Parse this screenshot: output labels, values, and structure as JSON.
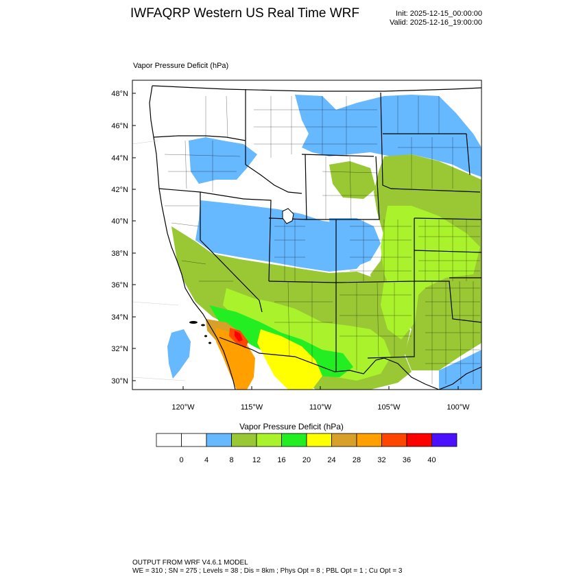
{
  "header": {
    "title": "IWFAQRP Western US Real Time WRF",
    "init": "Init: 2025-12-15_00:00:00",
    "valid": "Valid: 2025-12-16_19:00:00"
  },
  "map": {
    "field_label": "Vapor Pressure Deficit   (hPa)",
    "lat_labels": [
      "48°N",
      "46°N",
      "44°N",
      "42°N",
      "40°N",
      "38°N",
      "36°N",
      "34°N",
      "32°N",
      "30°N"
    ],
    "lon_labels": [
      "120°W",
      "115°W",
      "110°W",
      "105°W",
      "100°W"
    ],
    "colors": {
      "lt4": "#ffffff",
      "4-8": "#66b8ff",
      "8-12": "#99c834",
      "12-16": "#aaf22c",
      "16-20": "#22ee22",
      "20-24": "#ffff00",
      "24-28": "#d8a028",
      "28-32": "#ffa000",
      "32-36": "#ff4600",
      "36-40": "#ff0000",
      "gt40": "#4b11ff"
    }
  },
  "colorbar": {
    "title": "Vapor Pressure Deficit  (hPa)",
    "levels": [
      "0",
      "4",
      "8",
      "12",
      "16",
      "20",
      "24",
      "28",
      "32",
      "36",
      "40"
    ],
    "box_colors": [
      "#ffffff",
      "#ffffff",
      "#66b8ff",
      "#99c834",
      "#aaf22c",
      "#22ee22",
      "#ffff00",
      "#d8a028",
      "#ffa000",
      "#ff4600",
      "#ff0000",
      "#4b11ff"
    ]
  },
  "footer": {
    "line1": "OUTPUT FROM WRF V4.6.1 MODEL",
    "line2": "WE = 310 ; SN = 275 ; Levels = 38 ; Dis = 8km ; Phys Opt = 8 ; PBL Opt = 1 ; Cu Opt = 3"
  }
}
